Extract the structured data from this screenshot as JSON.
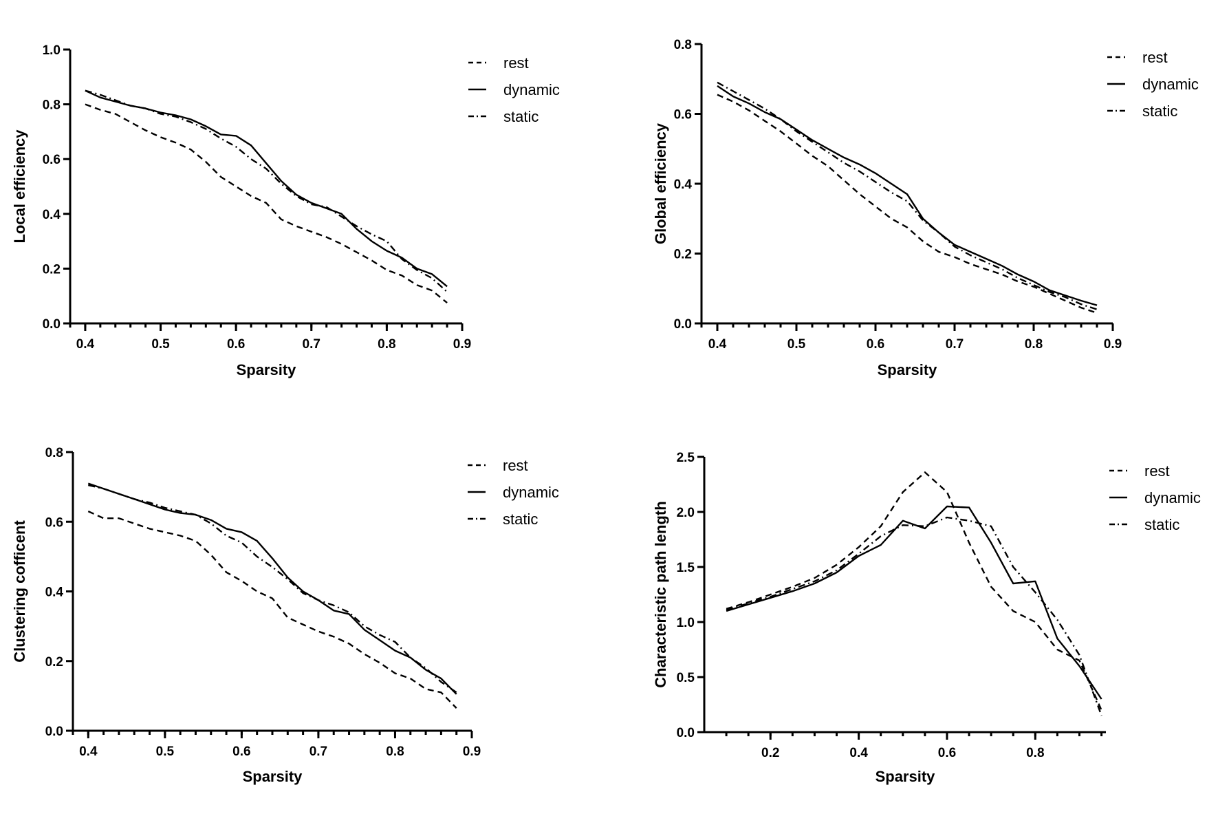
{
  "chart_data": [
    {
      "type": "line",
      "xlabel": "Sparsity",
      "ylabel": "Local efficiency",
      "xlim": [
        0.38,
        0.9
      ],
      "ylim": [
        0.0,
        1.0
      ],
      "xticks": [
        0.4,
        0.5,
        0.6,
        0.7,
        0.8,
        0.9
      ],
      "yticks": [
        0.0,
        0.2,
        0.4,
        0.6,
        0.8,
        1.0
      ],
      "x_minor_step": 0.02,
      "tick_decimals": 1,
      "legend_position": "top-right",
      "series": [
        {
          "name": "rest",
          "style": "dashed",
          "x": [
            0.4,
            0.42,
            0.44,
            0.46,
            0.48,
            0.5,
            0.52,
            0.54,
            0.56,
            0.58,
            0.6,
            0.62,
            0.64,
            0.66,
            0.68,
            0.7,
            0.72,
            0.74,
            0.76,
            0.78,
            0.8,
            0.82,
            0.84,
            0.86,
            0.88
          ],
          "y": [
            0.8,
            0.78,
            0.765,
            0.735,
            0.705,
            0.68,
            0.66,
            0.635,
            0.59,
            0.535,
            0.5,
            0.465,
            0.44,
            0.38,
            0.355,
            0.335,
            0.315,
            0.29,
            0.26,
            0.23,
            0.195,
            0.175,
            0.14,
            0.12,
            0.075
          ]
        },
        {
          "name": "dynamic",
          "style": "solid",
          "x": [
            0.4,
            0.42,
            0.44,
            0.46,
            0.48,
            0.5,
            0.52,
            0.54,
            0.56,
            0.58,
            0.6,
            0.62,
            0.64,
            0.66,
            0.68,
            0.7,
            0.72,
            0.74,
            0.76,
            0.78,
            0.8,
            0.82,
            0.84,
            0.86,
            0.88
          ],
          "y": [
            0.85,
            0.825,
            0.81,
            0.795,
            0.785,
            0.77,
            0.76,
            0.745,
            0.72,
            0.69,
            0.685,
            0.65,
            0.585,
            0.52,
            0.47,
            0.44,
            0.42,
            0.4,
            0.345,
            0.3,
            0.265,
            0.24,
            0.2,
            0.18,
            0.135
          ]
        },
        {
          "name": "static",
          "style": "dashdot",
          "x": [
            0.4,
            0.42,
            0.44,
            0.46,
            0.48,
            0.5,
            0.52,
            0.54,
            0.56,
            0.58,
            0.6,
            0.62,
            0.64,
            0.66,
            0.68,
            0.7,
            0.72,
            0.74,
            0.76,
            0.78,
            0.8,
            0.82,
            0.84,
            0.86,
            0.88
          ],
          "y": [
            0.85,
            0.835,
            0.815,
            0.795,
            0.785,
            0.765,
            0.755,
            0.735,
            0.71,
            0.675,
            0.645,
            0.6,
            0.565,
            0.51,
            0.465,
            0.435,
            0.425,
            0.39,
            0.355,
            0.325,
            0.3,
            0.235,
            0.195,
            0.165,
            0.115
          ]
        }
      ]
    },
    {
      "type": "line",
      "xlabel": "Sparsity",
      "ylabel": "Global efficiency",
      "xlim": [
        0.38,
        0.9
      ],
      "ylim": [
        0.0,
        0.8
      ],
      "xticks": [
        0.4,
        0.5,
        0.6,
        0.7,
        0.8,
        0.9
      ],
      "yticks": [
        0.0,
        0.2,
        0.4,
        0.6,
        0.8
      ],
      "x_minor_step": 0.02,
      "tick_decimals": 1,
      "legend_position": "top-right",
      "series": [
        {
          "name": "rest",
          "style": "dashed",
          "x": [
            0.4,
            0.42,
            0.44,
            0.46,
            0.48,
            0.5,
            0.52,
            0.54,
            0.56,
            0.58,
            0.6,
            0.62,
            0.64,
            0.66,
            0.68,
            0.7,
            0.72,
            0.74,
            0.76,
            0.78,
            0.8,
            0.82,
            0.84,
            0.86,
            0.88
          ],
          "y": [
            0.655,
            0.635,
            0.61,
            0.58,
            0.55,
            0.515,
            0.48,
            0.45,
            0.41,
            0.37,
            0.335,
            0.3,
            0.275,
            0.235,
            0.205,
            0.19,
            0.17,
            0.155,
            0.14,
            0.12,
            0.105,
            0.085,
            0.065,
            0.045,
            0.03
          ]
        },
        {
          "name": "dynamic",
          "style": "solid",
          "x": [
            0.4,
            0.42,
            0.44,
            0.46,
            0.48,
            0.5,
            0.52,
            0.54,
            0.56,
            0.58,
            0.6,
            0.62,
            0.64,
            0.66,
            0.68,
            0.7,
            0.72,
            0.74,
            0.76,
            0.78,
            0.8,
            0.82,
            0.84,
            0.86,
            0.88
          ],
          "y": [
            0.68,
            0.65,
            0.63,
            0.605,
            0.585,
            0.555,
            0.525,
            0.5,
            0.475,
            0.455,
            0.43,
            0.4,
            0.37,
            0.3,
            0.26,
            0.225,
            0.205,
            0.185,
            0.165,
            0.14,
            0.12,
            0.095,
            0.08,
            0.065,
            0.052
          ]
        },
        {
          "name": "static",
          "style": "dashdot",
          "x": [
            0.4,
            0.42,
            0.44,
            0.46,
            0.48,
            0.5,
            0.52,
            0.54,
            0.56,
            0.58,
            0.6,
            0.62,
            0.64,
            0.66,
            0.68,
            0.7,
            0.72,
            0.74,
            0.76,
            0.78,
            0.8,
            0.82,
            0.84,
            0.86,
            0.88
          ],
          "y": [
            0.69,
            0.665,
            0.64,
            0.615,
            0.585,
            0.55,
            0.52,
            0.49,
            0.46,
            0.435,
            0.405,
            0.375,
            0.35,
            0.295,
            0.26,
            0.22,
            0.195,
            0.175,
            0.155,
            0.13,
            0.11,
            0.09,
            0.075,
            0.055,
            0.04
          ]
        }
      ]
    },
    {
      "type": "line",
      "xlabel": "Sparsity",
      "ylabel": "Clustering cofficent",
      "xlim": [
        0.38,
        0.9
      ],
      "ylim": [
        0.0,
        0.8
      ],
      "xticks": [
        0.4,
        0.5,
        0.6,
        0.7,
        0.8,
        0.9
      ],
      "yticks": [
        0.0,
        0.2,
        0.4,
        0.6,
        0.8
      ],
      "x_minor_step": 0.02,
      "tick_decimals": 1,
      "legend_position": "top-right",
      "series": [
        {
          "name": "rest",
          "style": "dashed",
          "x": [
            0.4,
            0.42,
            0.44,
            0.46,
            0.48,
            0.5,
            0.52,
            0.54,
            0.56,
            0.58,
            0.6,
            0.62,
            0.64,
            0.66,
            0.68,
            0.7,
            0.72,
            0.74,
            0.76,
            0.78,
            0.8,
            0.82,
            0.84,
            0.86,
            0.88
          ],
          "y": [
            0.63,
            0.61,
            0.61,
            0.595,
            0.58,
            0.57,
            0.56,
            0.545,
            0.505,
            0.455,
            0.43,
            0.4,
            0.38,
            0.325,
            0.305,
            0.285,
            0.27,
            0.25,
            0.22,
            0.195,
            0.165,
            0.15,
            0.12,
            0.11,
            0.065
          ]
        },
        {
          "name": "dynamic",
          "style": "solid",
          "x": [
            0.4,
            0.42,
            0.44,
            0.46,
            0.48,
            0.5,
            0.52,
            0.54,
            0.56,
            0.58,
            0.6,
            0.62,
            0.64,
            0.66,
            0.68,
            0.7,
            0.72,
            0.74,
            0.76,
            0.78,
            0.8,
            0.82,
            0.84,
            0.86,
            0.88
          ],
          "y": [
            0.71,
            0.695,
            0.68,
            0.665,
            0.65,
            0.635,
            0.625,
            0.62,
            0.605,
            0.58,
            0.57,
            0.545,
            0.495,
            0.44,
            0.4,
            0.375,
            0.345,
            0.335,
            0.29,
            0.26,
            0.23,
            0.21,
            0.175,
            0.15,
            0.105
          ]
        },
        {
          "name": "static",
          "style": "dashdot",
          "x": [
            0.4,
            0.42,
            0.44,
            0.46,
            0.48,
            0.5,
            0.52,
            0.54,
            0.56,
            0.58,
            0.6,
            0.62,
            0.64,
            0.66,
            0.68,
            0.7,
            0.72,
            0.74,
            0.76,
            0.78,
            0.8,
            0.82,
            0.84,
            0.86,
            0.88
          ],
          "y": [
            0.705,
            0.695,
            0.68,
            0.665,
            0.655,
            0.64,
            0.63,
            0.62,
            0.595,
            0.56,
            0.54,
            0.5,
            0.47,
            0.435,
            0.395,
            0.375,
            0.36,
            0.34,
            0.3,
            0.275,
            0.255,
            0.21,
            0.18,
            0.14,
            0.11
          ]
        }
      ]
    },
    {
      "type": "line",
      "xlabel": "Sparsity",
      "ylabel": "Characteristic path length",
      "xlim": [
        0.05,
        0.96
      ],
      "ylim": [
        0.0,
        2.5
      ],
      "xticks": [
        0.2,
        0.4,
        0.6,
        0.8
      ],
      "yticks": [
        0.0,
        0.5,
        1.0,
        1.5,
        2.0,
        2.5
      ],
      "x_minor_step": 0.05,
      "x_minor_start": 0.1,
      "tick_decimals": 1,
      "legend_position": "top-right",
      "series": [
        {
          "name": "rest",
          "style": "dashed",
          "x": [
            0.1,
            0.15,
            0.2,
            0.25,
            0.3,
            0.35,
            0.4,
            0.45,
            0.5,
            0.55,
            0.6,
            0.65,
            0.7,
            0.75,
            0.8,
            0.85,
            0.9,
            0.95
          ],
          "y": [
            1.12,
            1.18,
            1.25,
            1.32,
            1.4,
            1.52,
            1.68,
            1.87,
            2.18,
            2.36,
            2.18,
            1.72,
            1.32,
            1.1,
            1.0,
            0.75,
            0.65,
            0.2
          ]
        },
        {
          "name": "dynamic",
          "style": "solid",
          "x": [
            0.1,
            0.15,
            0.2,
            0.25,
            0.3,
            0.35,
            0.4,
            0.45,
            0.5,
            0.55,
            0.6,
            0.65,
            0.7,
            0.75,
            0.8,
            0.85,
            0.9,
            0.95
          ],
          "y": [
            1.1,
            1.16,
            1.22,
            1.28,
            1.35,
            1.45,
            1.6,
            1.7,
            1.92,
            1.85,
            2.05,
            2.04,
            1.72,
            1.35,
            1.37,
            0.85,
            0.6,
            0.3
          ]
        },
        {
          "name": "static",
          "style": "dashdot",
          "x": [
            0.1,
            0.15,
            0.2,
            0.25,
            0.3,
            0.35,
            0.4,
            0.45,
            0.5,
            0.55,
            0.6,
            0.65,
            0.7,
            0.75,
            0.8,
            0.85,
            0.9,
            0.95
          ],
          "y": [
            1.11,
            1.17,
            1.23,
            1.3,
            1.37,
            1.47,
            1.62,
            1.78,
            1.88,
            1.87,
            1.95,
            1.92,
            1.87,
            1.5,
            1.27,
            1.02,
            0.7,
            0.15
          ]
        }
      ]
    }
  ]
}
